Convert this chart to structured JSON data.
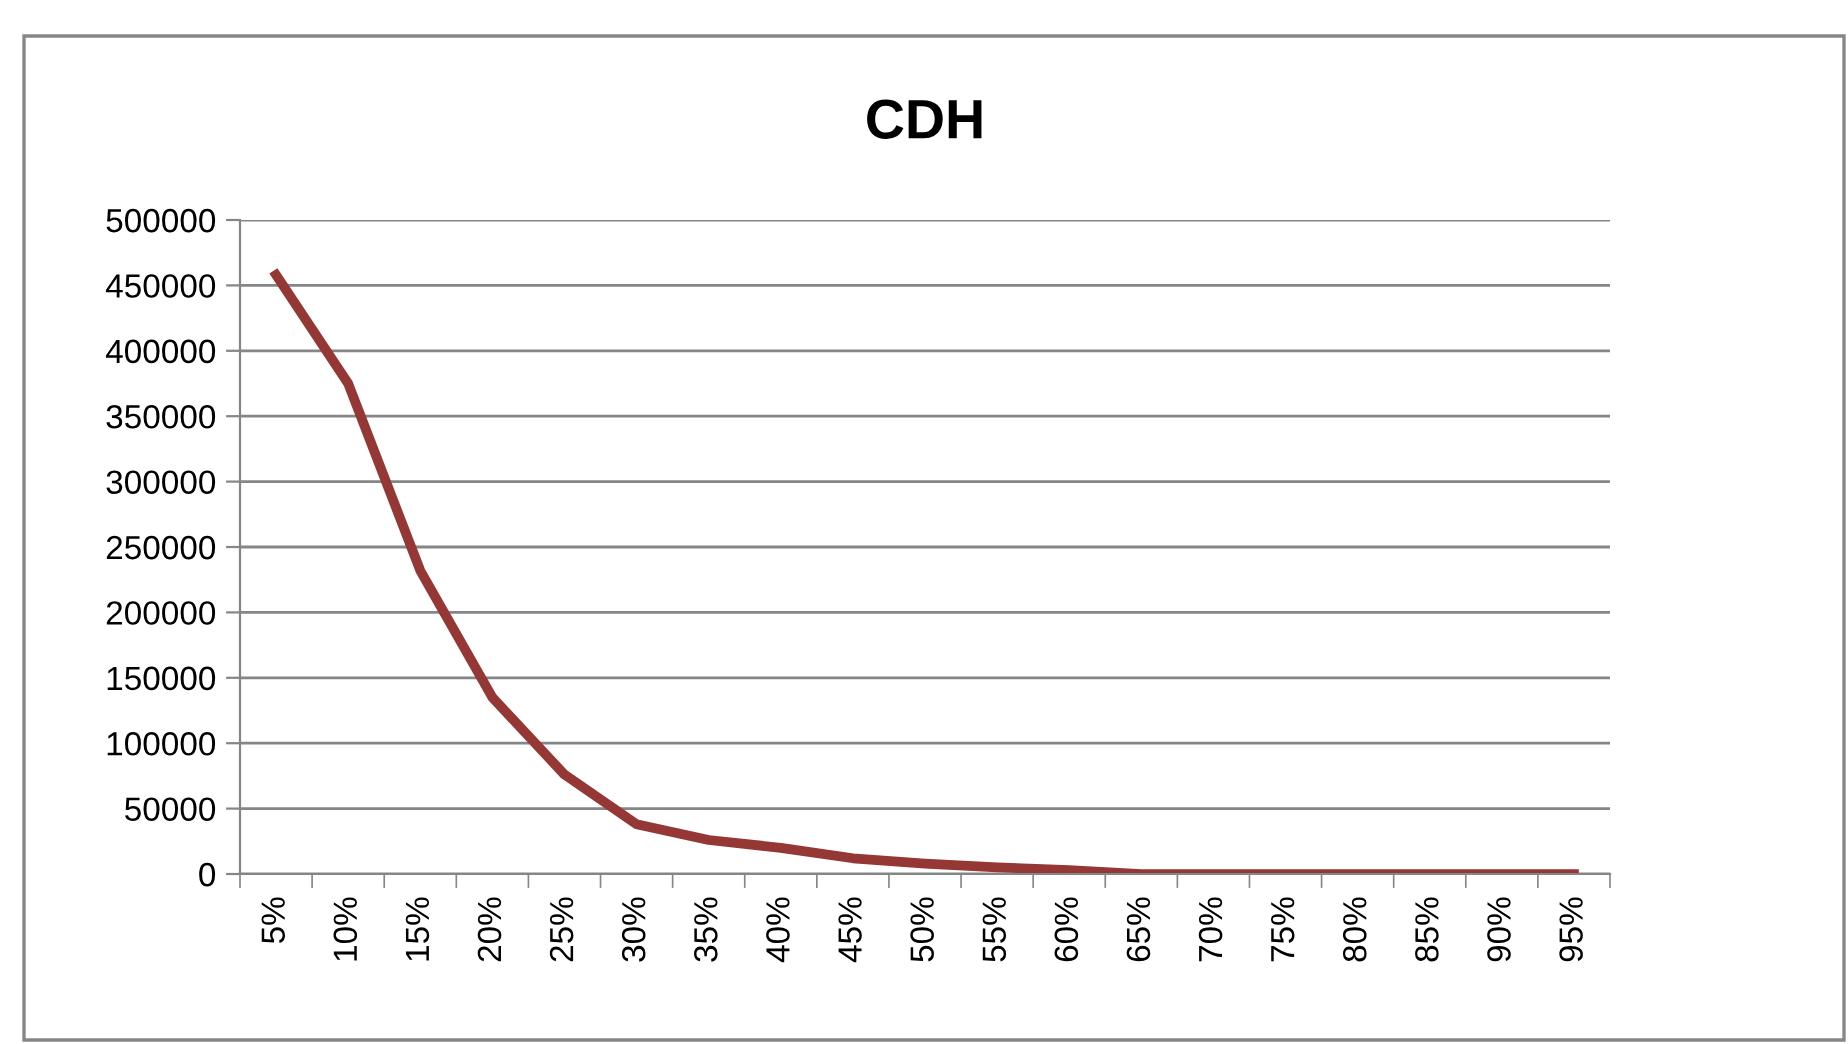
{
  "chart_data": {
    "type": "line",
    "title": "CDH",
    "categories": [
      "5%",
      "10%",
      "15%",
      "20%",
      "25%",
      "30%",
      "35%",
      "40%",
      "45%",
      "50%",
      "55%",
      "60%",
      "65%",
      "70%",
      "75%",
      "80%",
      "85%",
      "90%",
      "95%"
    ],
    "series": [
      {
        "color": "#953735",
        "values": [
          458000,
          375000,
          232000,
          135000,
          76000,
          38000,
          26000,
          20000,
          12000,
          8000,
          5000,
          3000,
          0,
          0,
          0,
          0,
          0,
          0,
          0
        ]
      }
    ],
    "ylim": [
      0,
      500000
    ],
    "yticks": [
      0,
      50000,
      100000,
      150000,
      200000,
      250000,
      300000,
      350000,
      400000,
      450000,
      500000
    ],
    "grid": "y",
    "marker": "none",
    "line_style": "solid"
  }
}
